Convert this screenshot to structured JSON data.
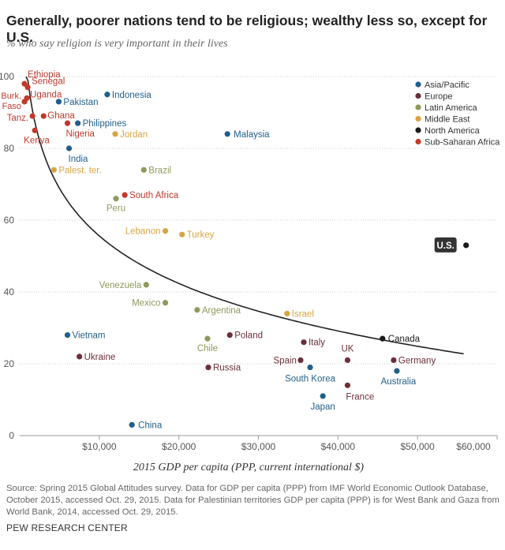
{
  "title": "Generally, poorer nations tend to be religious; wealthy less so, except for U.S.",
  "subtitle": "% who say religion is very important in their lives",
  "source": "Source: Spring 2015 Global Attitudes survey. Data for GDP per capita (PPP) from IMF World Economic Outlook Database, October 2015, accessed Oct. 29, 2015. Data for Palestinian territories GDP per capita (PPP) is for West Bank and Gaza from World Bank, 2014, accessed Oct. 29, 2015.",
  "credit": "PEW RESEARCH CENTER",
  "chart_data": {
    "type": "scatter",
    "xlabel": "2015 GDP per capita (PPP, current international $)",
    "ylabel": "",
    "xlim": [
      0,
      60000
    ],
    "ylim": [
      0,
      100
    ],
    "x_ticks": [
      10000,
      20000,
      30000,
      40000,
      50000,
      60000
    ],
    "x_tick_labels": [
      "$10,000",
      "$20,000",
      "$30,000",
      "$40,000",
      "$50,000",
      "$60,000"
    ],
    "y_ticks": [
      0,
      20,
      40,
      60,
      80,
      100
    ],
    "y_tick_labels": [
      "0",
      "20",
      "40",
      "60",
      "80",
      "100"
    ],
    "grid": "horizontal dotted",
    "legend_position": "top-right",
    "legend": [
      {
        "name": "Asia/Pacific",
        "color": "#1f5f8b"
      },
      {
        "name": "Europe",
        "color": "#6b2f3a"
      },
      {
        "name": "Latin America",
        "color": "#8c9a5b"
      },
      {
        "name": "Middle East",
        "color": "#d9a441"
      },
      {
        "name": "North America",
        "color": "#1a1a1a"
      },
      {
        "name": "Sub-Saharan Africa",
        "color": "#c0392b"
      }
    ],
    "trendline": "logarithmic",
    "points": [
      {
        "label": "Ethiopia",
        "region": "Sub-Saharan Africa",
        "x": 600,
        "y": 98
      },
      {
        "label": "Senegal",
        "region": "Sub-Saharan Africa",
        "x": 1000,
        "y": 97
      },
      {
        "label": "Burk. Faso",
        "region": "Sub-Saharan Africa",
        "x": 600,
        "y": 93
      },
      {
        "label": "Uganda",
        "region": "Sub-Saharan Africa",
        "x": 900,
        "y": 94
      },
      {
        "label": "Tanz.",
        "region": "Sub-Saharan Africa",
        "x": 1600,
        "y": 89
      },
      {
        "label": "Ghana",
        "region": "Sub-Saharan Africa",
        "x": 3000,
        "y": 89
      },
      {
        "label": "Kenya",
        "region": "Sub-Saharan Africa",
        "x": 1900,
        "y": 85
      },
      {
        "label": "Nigeria",
        "region": "Sub-Saharan Africa",
        "x": 6000,
        "y": 87
      },
      {
        "label": "South Africa",
        "region": "Sub-Saharan Africa",
        "x": 13200,
        "y": 67
      },
      {
        "label": "Pakistan",
        "region": "Asia/Pacific",
        "x": 4900,
        "y": 93
      },
      {
        "label": "Indonesia",
        "region": "Asia/Pacific",
        "x": 11000,
        "y": 95
      },
      {
        "label": "Philippines",
        "region": "Asia/Pacific",
        "x": 7300,
        "y": 87
      },
      {
        "label": "India",
        "region": "Asia/Pacific",
        "x": 6200,
        "y": 80
      },
      {
        "label": "Malaysia",
        "region": "Asia/Pacific",
        "x": 26100,
        "y": 84
      },
      {
        "label": "Vietnam",
        "region": "Asia/Pacific",
        "x": 6000,
        "y": 28
      },
      {
        "label": "China",
        "region": "Asia/Pacific",
        "x": 14100,
        "y": 3
      },
      {
        "label": "South Korea",
        "region": "Asia/Pacific",
        "x": 36500,
        "y": 19
      },
      {
        "label": "Japan",
        "region": "Asia/Pacific",
        "x": 38100,
        "y": 11
      },
      {
        "label": "Australia",
        "region": "Asia/Pacific",
        "x": 47400,
        "y": 18
      },
      {
        "label": "Jordan",
        "region": "Middle East",
        "x": 12000,
        "y": 84
      },
      {
        "label": "Palest. ter.",
        "region": "Middle East",
        "x": 4300,
        "y": 74
      },
      {
        "label": "Lebanon",
        "region": "Middle East",
        "x": 18300,
        "y": 57
      },
      {
        "label": "Turkey",
        "region": "Middle East",
        "x": 20400,
        "y": 56
      },
      {
        "label": "Israel",
        "region": "Middle East",
        "x": 33600,
        "y": 34
      },
      {
        "label": "Brazil",
        "region": "Latin America",
        "x": 15600,
        "y": 74
      },
      {
        "label": "Peru",
        "region": "Latin America",
        "x": 12100,
        "y": 66
      },
      {
        "label": "Venezuela",
        "region": "Latin America",
        "x": 15900,
        "y": 42
      },
      {
        "label": "Mexico",
        "region": "Latin America",
        "x": 18300,
        "y": 37
      },
      {
        "label": "Argentina",
        "region": "Latin America",
        "x": 22300,
        "y": 35
      },
      {
        "label": "Chile",
        "region": "Latin America",
        "x": 23600,
        "y": 27
      },
      {
        "label": "Ukraine",
        "region": "Europe",
        "x": 7500,
        "y": 22
      },
      {
        "label": "Russia",
        "region": "Europe",
        "x": 23700,
        "y": 19
      },
      {
        "label": "Poland",
        "region": "Europe",
        "x": 26400,
        "y": 28
      },
      {
        "label": "Italy",
        "region": "Europe",
        "x": 35700,
        "y": 26
      },
      {
        "label": "Spain",
        "region": "Europe",
        "x": 35300,
        "y": 21
      },
      {
        "label": "UK",
        "region": "Europe",
        "x": 41200,
        "y": 21
      },
      {
        "label": "France",
        "region": "Europe",
        "x": 41200,
        "y": 14
      },
      {
        "label": "Germany",
        "region": "Europe",
        "x": 47000,
        "y": 21
      },
      {
        "label": "Canada",
        "region": "North America",
        "x": 45600,
        "y": 27
      },
      {
        "label": "U.S.",
        "region": "North America",
        "x": 56100,
        "y": 53
      }
    ]
  }
}
